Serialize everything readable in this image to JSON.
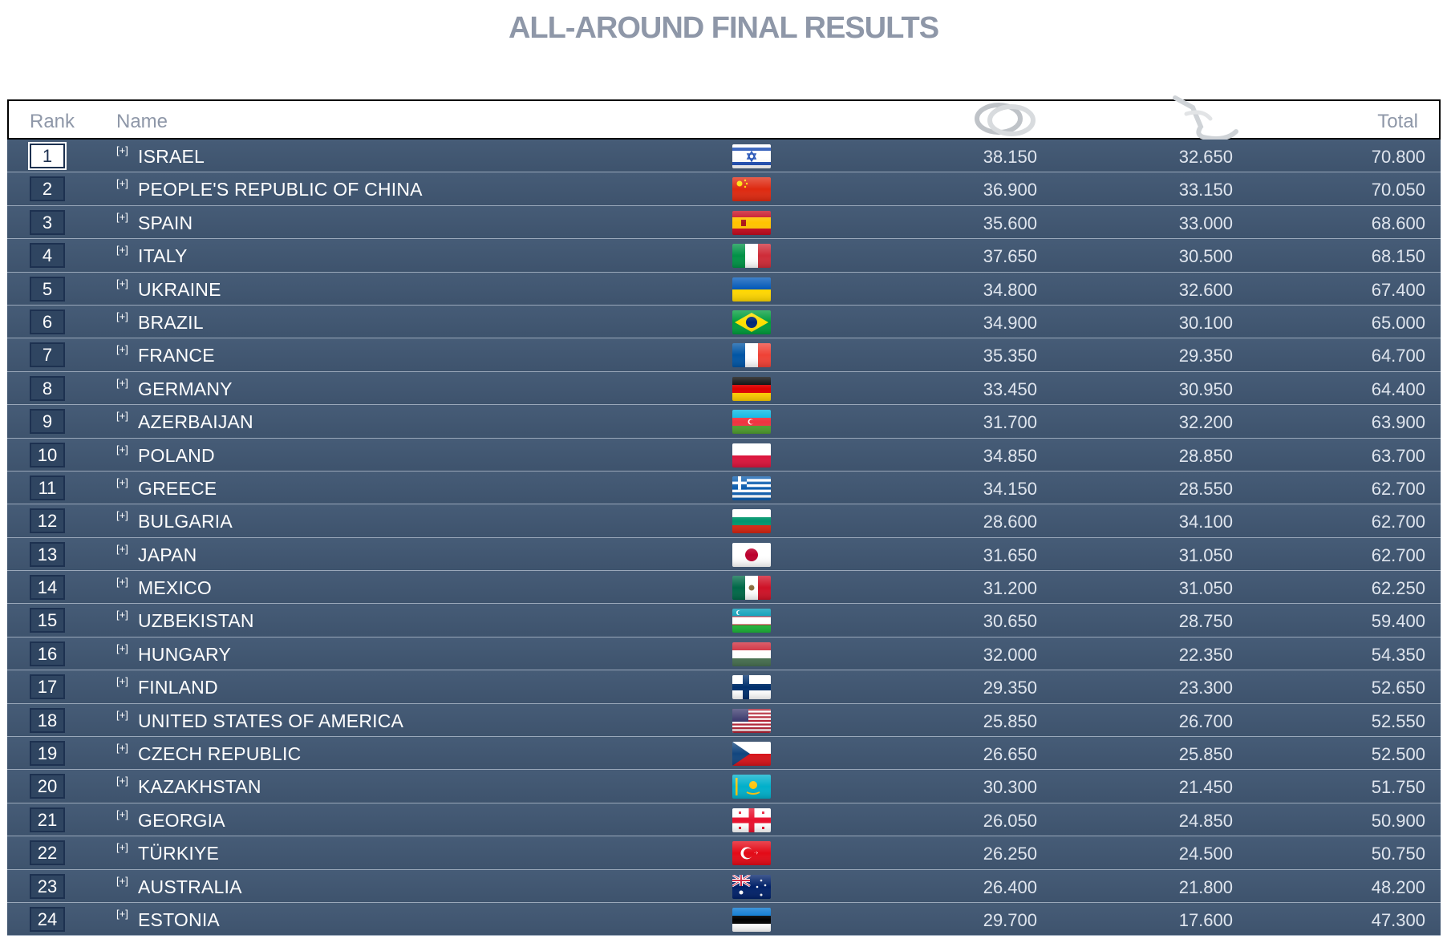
{
  "title": "ALL-AROUND FINAL RESULTS",
  "columns": {
    "rank": "Rank",
    "name": "Name",
    "apparatus": [
      {
        "icon": "hoop-icon"
      },
      {
        "icon": "ribbon-icon"
      }
    ],
    "total": "Total"
  },
  "expand_label": "[+]",
  "rows": [
    {
      "rank": "1",
      "name": "ISRAEL",
      "flag": "israel-flag-icon",
      "hoop": "38.150",
      "ribbon": "32.650",
      "total": "70.800"
    },
    {
      "rank": "2",
      "name": "PEOPLE'S REPUBLIC OF CHINA",
      "flag": "china-flag-icon",
      "hoop": "36.900",
      "ribbon": "33.150",
      "total": "70.050"
    },
    {
      "rank": "3",
      "name": "SPAIN",
      "flag": "spain-flag-icon",
      "hoop": "35.600",
      "ribbon": "33.000",
      "total": "68.600"
    },
    {
      "rank": "4",
      "name": "ITALY",
      "flag": "italy-flag-icon",
      "hoop": "37.650",
      "ribbon": "30.500",
      "total": "68.150"
    },
    {
      "rank": "5",
      "name": "UKRAINE",
      "flag": "ukraine-flag-icon",
      "hoop": "34.800",
      "ribbon": "32.600",
      "total": "67.400"
    },
    {
      "rank": "6",
      "name": "BRAZIL",
      "flag": "brazil-flag-icon",
      "hoop": "34.900",
      "ribbon": "30.100",
      "total": "65.000"
    },
    {
      "rank": "7",
      "name": "FRANCE",
      "flag": "france-flag-icon",
      "hoop": "35.350",
      "ribbon": "29.350",
      "total": "64.700"
    },
    {
      "rank": "8",
      "name": "GERMANY",
      "flag": "germany-flag-icon",
      "hoop": "33.450",
      "ribbon": "30.950",
      "total": "64.400"
    },
    {
      "rank": "9",
      "name": "AZERBAIJAN",
      "flag": "azerbaijan-flag-icon",
      "hoop": "31.700",
      "ribbon": "32.200",
      "total": "63.900"
    },
    {
      "rank": "10",
      "name": "POLAND",
      "flag": "poland-flag-icon",
      "hoop": "34.850",
      "ribbon": "28.850",
      "total": "63.700"
    },
    {
      "rank": "11",
      "name": "GREECE",
      "flag": "greece-flag-icon",
      "hoop": "34.150",
      "ribbon": "28.550",
      "total": "62.700"
    },
    {
      "rank": "12",
      "name": "BULGARIA",
      "flag": "bulgaria-flag-icon",
      "hoop": "28.600",
      "ribbon": "34.100",
      "total": "62.700"
    },
    {
      "rank": "13",
      "name": "JAPAN",
      "flag": "japan-flag-icon",
      "hoop": "31.650",
      "ribbon": "31.050",
      "total": "62.700"
    },
    {
      "rank": "14",
      "name": "MEXICO",
      "flag": "mexico-flag-icon",
      "hoop": "31.200",
      "ribbon": "31.050",
      "total": "62.250"
    },
    {
      "rank": "15",
      "name": "UZBEKISTAN",
      "flag": "uzbekistan-flag-icon",
      "hoop": "30.650",
      "ribbon": "28.750",
      "total": "59.400"
    },
    {
      "rank": "16",
      "name": "HUNGARY",
      "flag": "hungary-flag-icon",
      "hoop": "32.000",
      "ribbon": "22.350",
      "total": "54.350"
    },
    {
      "rank": "17",
      "name": "FINLAND",
      "flag": "finland-flag-icon",
      "hoop": "29.350",
      "ribbon": "23.300",
      "total": "52.650"
    },
    {
      "rank": "18",
      "name": "UNITED STATES OF AMERICA",
      "flag": "usa-flag-icon",
      "hoop": "25.850",
      "ribbon": "26.700",
      "total": "52.550"
    },
    {
      "rank": "19",
      "name": "CZECH REPUBLIC",
      "flag": "czech-flag-icon",
      "hoop": "26.650",
      "ribbon": "25.850",
      "total": "52.500"
    },
    {
      "rank": "20",
      "name": "KAZAKHSTAN",
      "flag": "kazakhstan-flag-icon",
      "hoop": "30.300",
      "ribbon": "21.450",
      "total": "51.750"
    },
    {
      "rank": "21",
      "name": "GEORGIA",
      "flag": "georgia-flag-icon",
      "hoop": "26.050",
      "ribbon": "24.850",
      "total": "50.900"
    },
    {
      "rank": "22",
      "name": "TÜRKIYE",
      "flag": "turkiye-flag-icon",
      "hoop": "26.250",
      "ribbon": "24.500",
      "total": "50.750"
    },
    {
      "rank": "23",
      "name": "AUSTRALIA",
      "flag": "australia-flag-icon",
      "hoop": "26.400",
      "ribbon": "21.800",
      "total": "48.200"
    },
    {
      "rank": "24",
      "name": "ESTONIA",
      "flag": "estonia-flag-icon",
      "hoop": "29.700",
      "ribbon": "17.600",
      "total": "47.300"
    }
  ]
}
